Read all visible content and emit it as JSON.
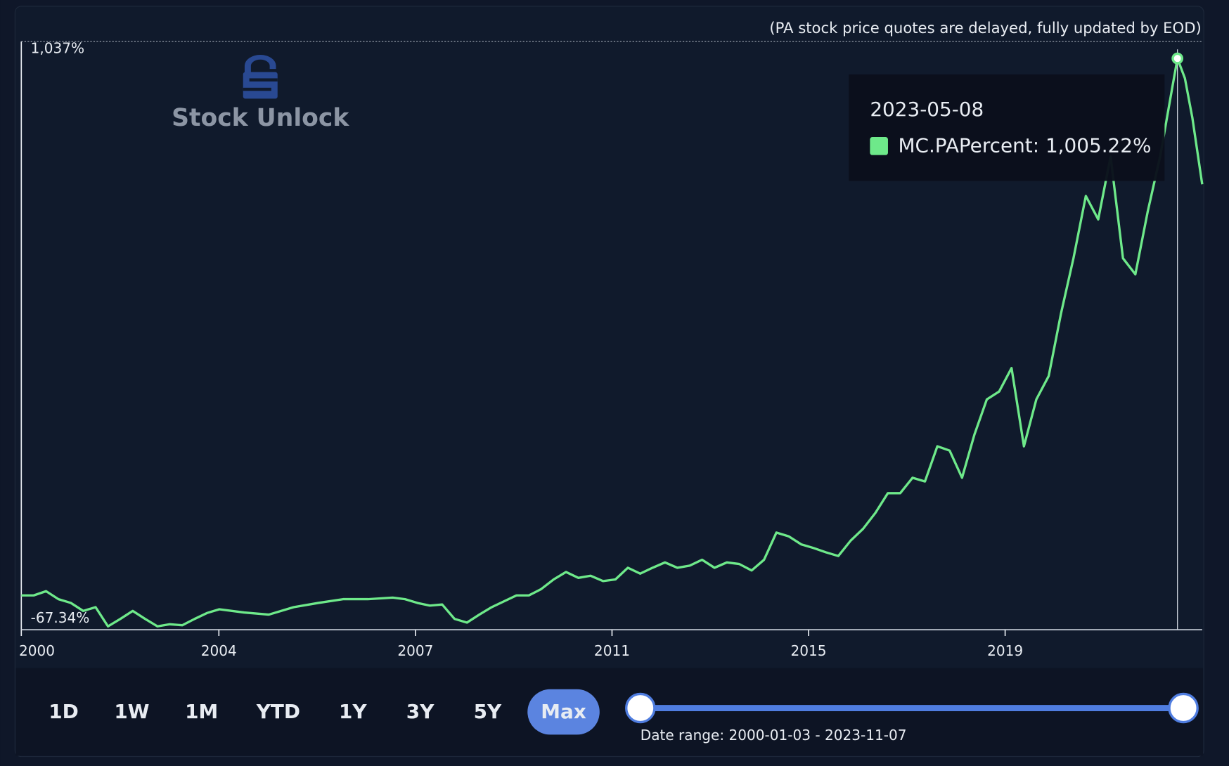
{
  "notice": "(PA stock price quotes are delayed, fully updated by EOD)",
  "logo": "Stock Unlock",
  "chart_data": {
    "type": "line",
    "xlim": [
      2000.0,
      2023.85
    ],
    "xticks": [
      {
        "value": 2000.0,
        "label": "2000"
      },
      {
        "value": 2003.99,
        "label": "2004"
      },
      {
        "value": 2007.96,
        "label": "2007"
      },
      {
        "value": 2011.93,
        "label": "2011"
      },
      {
        "value": 2015.9,
        "label": "2015"
      },
      {
        "value": 2019.87,
        "label": "2019"
      }
    ],
    "ylim": [
      -67.34,
      1037
    ],
    "yticks": [
      {
        "value": 1037,
        "label": "1,037%"
      },
      {
        "value": -67.34,
        "label": "-67.34%"
      }
    ],
    "series": [
      {
        "name": "MC.PAPercent",
        "color": "#6ee98a",
        "x": [
          2000.0,
          2000.25,
          2000.5,
          2000.75,
          2001.0,
          2001.25,
          2001.5,
          2001.75,
          2002.0,
          2002.25,
          2002.5,
          2002.75,
          2003.0,
          2003.25,
          2003.5,
          2003.75,
          2004.0,
          2004.5,
          2005.0,
          2005.5,
          2006.0,
          2006.5,
          2007.0,
          2007.5,
          2007.75,
          2008.0,
          2008.25,
          2008.5,
          2008.75,
          2009.0,
          2009.25,
          2009.5,
          2009.75,
          2010.0,
          2010.25,
          2010.5,
          2010.75,
          2011.0,
          2011.25,
          2011.5,
          2011.75,
          2012.0,
          2012.25,
          2012.5,
          2012.75,
          2013.0,
          2013.25,
          2013.5,
          2013.75,
          2014.0,
          2014.25,
          2014.5,
          2014.75,
          2015.0,
          2015.25,
          2015.5,
          2015.75,
          2016.0,
          2016.25,
          2016.5,
          2016.75,
          2017.0,
          2017.25,
          2017.5,
          2017.75,
          2018.0,
          2018.25,
          2018.5,
          2018.75,
          2019.0,
          2019.25,
          2019.5,
          2019.75,
          2020.0,
          2020.25,
          2020.5,
          2020.75,
          2021.0,
          2021.25,
          2021.5,
          2021.75,
          2022.0,
          2022.25,
          2022.5,
          2022.75,
          2023.0,
          2023.25,
          2023.35,
          2023.5,
          2023.65,
          2023.85
        ],
        "values": [
          -3,
          -3,
          5,
          -10,
          -17,
          -32,
          -25,
          -61,
          -47,
          -32,
          -47,
          -61,
          -57,
          -59,
          -47,
          -36,
          -29,
          -35,
          -39,
          -25,
          -17,
          -10,
          -10,
          -7,
          -10,
          -17,
          -22,
          -20,
          -47,
          -54,
          -39,
          -25,
          -14,
          -3,
          -3,
          9,
          27,
          41,
          30,
          34,
          24,
          27,
          49,
          38,
          49,
          59,
          49,
          53,
          64,
          49,
          59,
          56,
          44,
          64,
          115,
          108,
          93,
          86,
          78,
          71,
          100,
          122,
          152,
          189,
          189,
          218,
          211,
          277,
          269,
          218,
          299,
          365,
          380,
          424,
          277,
          365,
          409,
          527,
          630,
          747,
          703,
          821,
          630,
          600,
          718,
          821,
          953,
          1005,
          968,
          894,
          769
        ]
      }
    ],
    "tooltip": {
      "x": 2023.35,
      "value": 1005.22,
      "date": "2023-05-08",
      "text": "MC.PAPercent: 1,005.22%"
    }
  },
  "controls": {
    "ranges": [
      "1D",
      "1W",
      "1M",
      "YTD",
      "1Y",
      "3Y",
      "5Y",
      "Max"
    ],
    "active": "Max",
    "date_range": "Date range: 2000-01-03 - 2023-11-07"
  }
}
